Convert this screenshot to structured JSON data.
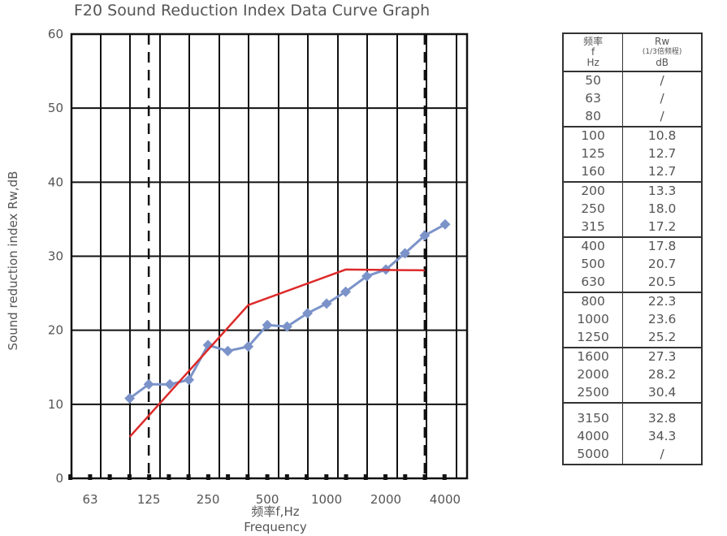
{
  "chart_data": {
    "type": "line",
    "title": "F20 Sound Reduction Index Data Curve Graph",
    "ylabel": "Sound reduction index Rw,dB",
    "xlabel_cn": "频率f,Hz",
    "xlabel_en": "Frequency",
    "ylim": [
      0,
      60
    ],
    "yticks": [
      0,
      10,
      20,
      30,
      40,
      50,
      60
    ],
    "xtick_labels": [
      "63",
      "125",
      "250",
      "500",
      "1000",
      "2000",
      "4000"
    ],
    "grid": true,
    "x": [
      "100",
      "125",
      "160",
      "200",
      "250",
      "315",
      "400",
      "500",
      "630",
      "800",
      "1000",
      "1250",
      "1600",
      "2000",
      "2500",
      "3150",
      "4000"
    ],
    "series": [
      {
        "values": [
          10.8,
          12.7,
          12.7,
          13.3,
          18.0,
          17.2,
          17.8,
          20.7,
          20.5,
          22.3,
          23.6,
          25.2,
          27.3,
          28.2,
          30.4,
          32.8,
          34.3
        ],
        "color": "#7b93c9",
        "marker": "diamond"
      },
      {
        "x": [
          "100",
          "400",
          "1250",
          "3150"
        ],
        "values": [
          5.6,
          23.4,
          28.2,
          28.1
        ],
        "color": "#dd2a2a",
        "marker": "none"
      }
    ],
    "dashed_lines_x": [
      "125",
      "3150"
    ]
  },
  "table": {
    "header": {
      "col1": [
        "频率",
        "f",
        "Hz"
      ],
      "col2_top": "Rw",
      "col2_mid": "(1/3倍频程)",
      "col2_bot": "dB"
    },
    "groups": [
      [
        [
          "50",
          "/"
        ],
        [
          "63",
          "/"
        ],
        [
          "80",
          "/"
        ]
      ],
      [
        [
          "100",
          "10.8"
        ],
        [
          "125",
          "12.7"
        ],
        [
          "160",
          "12.7"
        ]
      ],
      [
        [
          "200",
          "13.3"
        ],
        [
          "250",
          "18.0"
        ],
        [
          "315",
          "17.2"
        ]
      ],
      [
        [
          "400",
          "17.8"
        ],
        [
          "500",
          "20.7"
        ],
        [
          "630",
          "20.5"
        ]
      ],
      [
        [
          "800",
          "22.3"
        ],
        [
          "1000",
          "23.6"
        ],
        [
          "1250",
          "25.2"
        ]
      ],
      [
        [
          "1600",
          "27.3"
        ],
        [
          "2000",
          "28.2"
        ],
        [
          "2500",
          "30.4"
        ]
      ],
      [
        [
          "3150",
          "32.8"
        ],
        [
          "4000",
          "34.3"
        ],
        [
          "5000",
          "/"
        ]
      ]
    ]
  }
}
